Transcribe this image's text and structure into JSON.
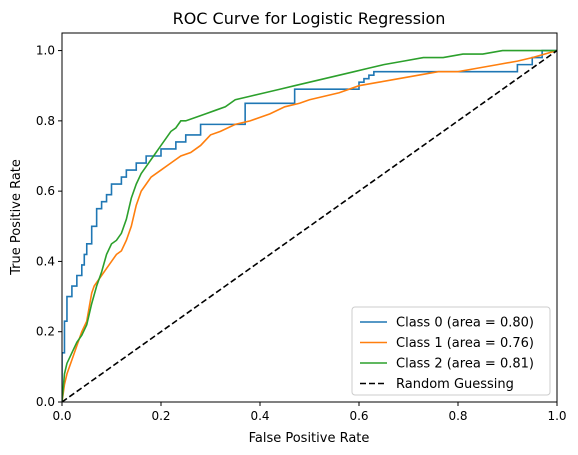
{
  "chart_data": {
    "type": "line",
    "title": "ROC Curve for Logistic Regression",
    "xlabel": "False Positive Rate",
    "ylabel": "True Positive Rate",
    "xlim": [
      0.0,
      1.0
    ],
    "ylim": [
      0.0,
      1.05
    ],
    "xticks": [
      "0.0",
      "0.2",
      "0.4",
      "0.6",
      "0.8",
      "1.0"
    ],
    "yticks": [
      "0.0",
      "0.2",
      "0.4",
      "0.6",
      "0.8",
      "1.0"
    ],
    "xtick_values": [
      0.0,
      0.2,
      0.4,
      0.6,
      0.8,
      1.0
    ],
    "ytick_values": [
      0.0,
      0.2,
      0.4,
      0.6,
      0.8,
      1.0
    ],
    "grid": false,
    "legend_position": "bottom-right",
    "series": [
      {
        "name": "Class 0 (area = 0.80)",
        "color": "#1f77b4",
        "style": "solid",
        "x": [
          0.0,
          0.0,
          0.005,
          0.005,
          0.01,
          0.01,
          0.02,
          0.02,
          0.03,
          0.03,
          0.04,
          0.04,
          0.045,
          0.045,
          0.05,
          0.05,
          0.06,
          0.06,
          0.07,
          0.07,
          0.08,
          0.08,
          0.09,
          0.09,
          0.1,
          0.1,
          0.12,
          0.12,
          0.13,
          0.13,
          0.15,
          0.15,
          0.17,
          0.17,
          0.18,
          0.18,
          0.2,
          0.2,
          0.21,
          0.21,
          0.23,
          0.23,
          0.25,
          0.25,
          0.28,
          0.28,
          0.37,
          0.37,
          0.47,
          0.47,
          0.6,
          0.6,
          0.61,
          0.61,
          0.62,
          0.62,
          0.63,
          0.63,
          0.64,
          0.64,
          0.65,
          0.65,
          0.77,
          0.77,
          0.92,
          0.92,
          0.95,
          0.95,
          0.97,
          0.97,
          1.0
        ],
        "y": [
          0.0,
          0.14,
          0.14,
          0.23,
          0.23,
          0.3,
          0.3,
          0.33,
          0.33,
          0.36,
          0.36,
          0.39,
          0.39,
          0.42,
          0.42,
          0.45,
          0.45,
          0.5,
          0.5,
          0.55,
          0.55,
          0.57,
          0.57,
          0.59,
          0.59,
          0.62,
          0.62,
          0.64,
          0.64,
          0.66,
          0.66,
          0.68,
          0.68,
          0.7,
          0.7,
          0.7,
          0.7,
          0.72,
          0.72,
          0.72,
          0.72,
          0.74,
          0.74,
          0.76,
          0.76,
          0.79,
          0.79,
          0.85,
          0.85,
          0.89,
          0.89,
          0.91,
          0.91,
          0.92,
          0.92,
          0.93,
          0.93,
          0.94,
          0.94,
          0.94,
          0.94,
          0.94,
          0.94,
          0.94,
          0.94,
          0.96,
          0.96,
          0.98,
          0.98,
          1.0,
          1.0
        ]
      },
      {
        "name": "Class 1 (area = 0.76)",
        "color": "#ff7f0e",
        "style": "solid",
        "x": [
          0.0,
          0.005,
          0.01,
          0.02,
          0.03,
          0.04,
          0.05,
          0.055,
          0.06,
          0.065,
          0.07,
          0.08,
          0.09,
          0.1,
          0.11,
          0.12,
          0.13,
          0.14,
          0.15,
          0.16,
          0.17,
          0.18,
          0.2,
          0.22,
          0.24,
          0.26,
          0.28,
          0.3,
          0.32,
          0.35,
          0.38,
          0.4,
          0.42,
          0.45,
          0.48,
          0.5,
          0.53,
          0.56,
          0.6,
          0.64,
          0.68,
          0.72,
          0.76,
          0.8,
          0.84,
          0.88,
          0.92,
          0.95,
          1.0
        ],
        "y": [
          0.0,
          0.05,
          0.08,
          0.12,
          0.16,
          0.2,
          0.23,
          0.27,
          0.31,
          0.33,
          0.34,
          0.36,
          0.38,
          0.4,
          0.42,
          0.43,
          0.46,
          0.5,
          0.56,
          0.6,
          0.62,
          0.64,
          0.66,
          0.68,
          0.7,
          0.71,
          0.73,
          0.76,
          0.77,
          0.79,
          0.8,
          0.81,
          0.82,
          0.84,
          0.85,
          0.86,
          0.87,
          0.88,
          0.9,
          0.91,
          0.92,
          0.93,
          0.94,
          0.94,
          0.95,
          0.96,
          0.97,
          0.98,
          1.0
        ]
      },
      {
        "name": "Class 2 (area = 0.81)",
        "color": "#2ca02c",
        "style": "solid",
        "x": [
          0.0,
          0.005,
          0.01,
          0.02,
          0.03,
          0.04,
          0.05,
          0.06,
          0.07,
          0.08,
          0.09,
          0.1,
          0.11,
          0.12,
          0.13,
          0.14,
          0.15,
          0.16,
          0.17,
          0.18,
          0.19,
          0.2,
          0.21,
          0.22,
          0.23,
          0.24,
          0.25,
          0.27,
          0.29,
          0.31,
          0.33,
          0.35,
          0.38,
          0.41,
          0.44,
          0.47,
          0.5,
          0.53,
          0.56,
          0.59,
          0.62,
          0.65,
          0.69,
          0.73,
          0.77,
          0.81,
          0.85,
          0.89,
          0.93,
          0.96,
          1.0
        ],
        "y": [
          0.0,
          0.08,
          0.11,
          0.14,
          0.17,
          0.19,
          0.22,
          0.28,
          0.33,
          0.37,
          0.42,
          0.45,
          0.46,
          0.48,
          0.52,
          0.58,
          0.62,
          0.65,
          0.67,
          0.69,
          0.71,
          0.73,
          0.75,
          0.77,
          0.78,
          0.8,
          0.8,
          0.81,
          0.82,
          0.83,
          0.84,
          0.86,
          0.87,
          0.88,
          0.89,
          0.9,
          0.91,
          0.92,
          0.93,
          0.94,
          0.95,
          0.96,
          0.97,
          0.98,
          0.98,
          0.99,
          0.99,
          1.0,
          1.0,
          1.0,
          1.0
        ]
      },
      {
        "name": "Random Guessing",
        "color": "#000000",
        "style": "dashed",
        "x": [
          0.0,
          1.0
        ],
        "y": [
          0.0,
          1.0
        ]
      }
    ]
  }
}
